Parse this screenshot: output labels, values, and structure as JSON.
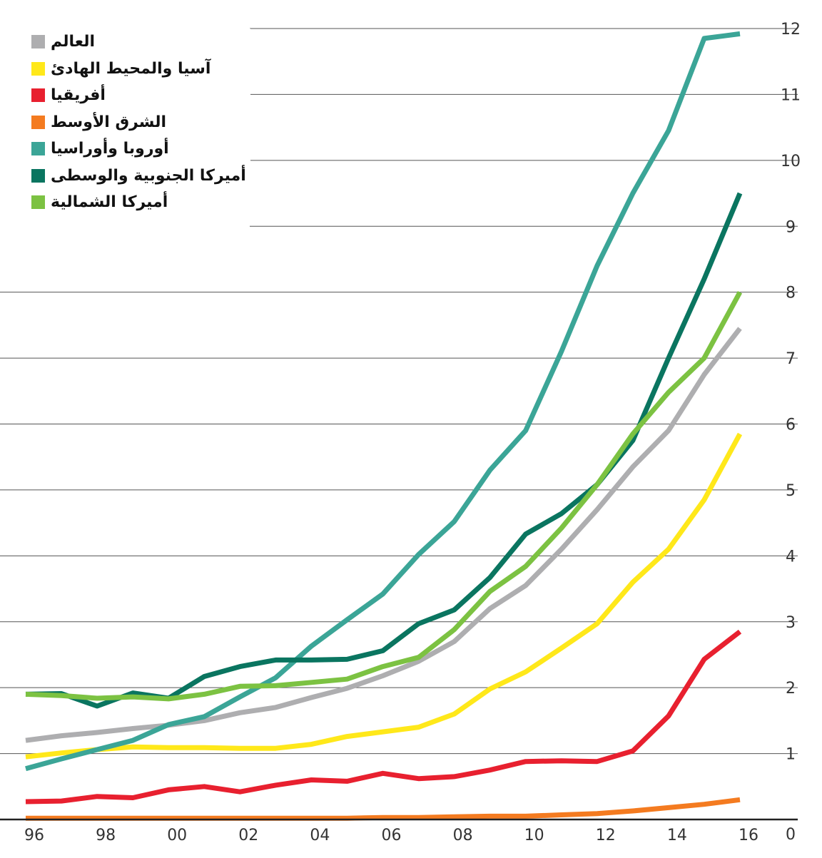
{
  "chart_data": {
    "type": "line",
    "title": "",
    "xlabel": "",
    "ylabel": "",
    "x": [
      1996,
      1997,
      1998,
      1999,
      2000,
      2001,
      2002,
      2003,
      2004,
      2005,
      2006,
      2007,
      2008,
      2009,
      2010,
      2011,
      2012,
      2013,
      2014,
      2015,
      2016
    ],
    "x_tick_labels": [
      "96",
      "98",
      "00",
      "02",
      "04",
      "06",
      "08",
      "10",
      "12",
      "14",
      "16"
    ],
    "y_tick_labels": [
      "0",
      "1",
      "2",
      "3",
      "4",
      "5",
      "6",
      "7",
      "8",
      "9",
      "10",
      "11",
      "12"
    ],
    "ylim": [
      0,
      12
    ],
    "grid": true,
    "legend_position": "top-left",
    "series": [
      {
        "name": "العالم",
        "color": "#aeaeb0",
        "values": [
          1.2,
          1.27,
          1.32,
          1.38,
          1.43,
          1.5,
          1.62,
          1.7,
          1.85,
          1.99,
          2.18,
          2.4,
          2.7,
          3.2,
          3.55,
          4.1,
          4.7,
          5.35,
          5.9,
          6.75,
          7.45
        ]
      },
      {
        "name": "آسيا والمحيط الهادئ",
        "color": "#ffe81a",
        "values": [
          0.95,
          1.01,
          1.06,
          1.1,
          1.09,
          1.09,
          1.08,
          1.08,
          1.14,
          1.26,
          1.33,
          1.4,
          1.6,
          1.98,
          2.24,
          2.6,
          2.97,
          3.6,
          4.1,
          4.85,
          5.85
        ]
      },
      {
        "name": "أفريقيا",
        "color": "#e8202f",
        "values": [
          0.27,
          0.28,
          0.35,
          0.33,
          0.45,
          0.5,
          0.42,
          0.52,
          0.6,
          0.58,
          0.7,
          0.62,
          0.65,
          0.75,
          0.88,
          0.89,
          0.88,
          1.04,
          1.57,
          2.43,
          2.85
        ]
      },
      {
        "name": "الشرق الأوسط",
        "color": "#f47b20",
        "values": [
          0.02,
          0.02,
          0.02,
          0.02,
          0.02,
          0.02,
          0.02,
          0.02,
          0.02,
          0.02,
          0.03,
          0.03,
          0.04,
          0.05,
          0.05,
          0.07,
          0.09,
          0.13,
          0.18,
          0.23,
          0.3
        ]
      },
      {
        "name": "أوروبا وأوراسيا",
        "color": "#3ba597",
        "values": [
          0.77,
          0.92,
          1.06,
          1.2,
          1.44,
          1.56,
          1.86,
          2.15,
          2.63,
          3.03,
          3.42,
          4.02,
          4.52,
          5.3,
          5.9,
          7.1,
          8.4,
          9.5,
          10.45,
          11.85,
          11.92
        ]
      },
      {
        "name": "أميركا الجنوبية والوسطى",
        "color": "#0a7560",
        "values": [
          1.9,
          1.91,
          1.72,
          1.92,
          1.84,
          2.17,
          2.32,
          2.42,
          2.42,
          2.43,
          2.56,
          2.97,
          3.18,
          3.67,
          4.33,
          4.64,
          5.08,
          5.75,
          7.0,
          8.2,
          9.5
        ]
      },
      {
        "name": "أميركا الشمالية",
        "color": "#7cc242",
        "values": [
          1.9,
          1.88,
          1.84,
          1.86,
          1.83,
          1.9,
          2.02,
          2.03,
          2.08,
          2.13,
          2.32,
          2.46,
          2.88,
          3.46,
          3.84,
          4.42,
          5.08,
          5.85,
          6.48,
          7.0,
          8.0
        ]
      }
    ]
  }
}
